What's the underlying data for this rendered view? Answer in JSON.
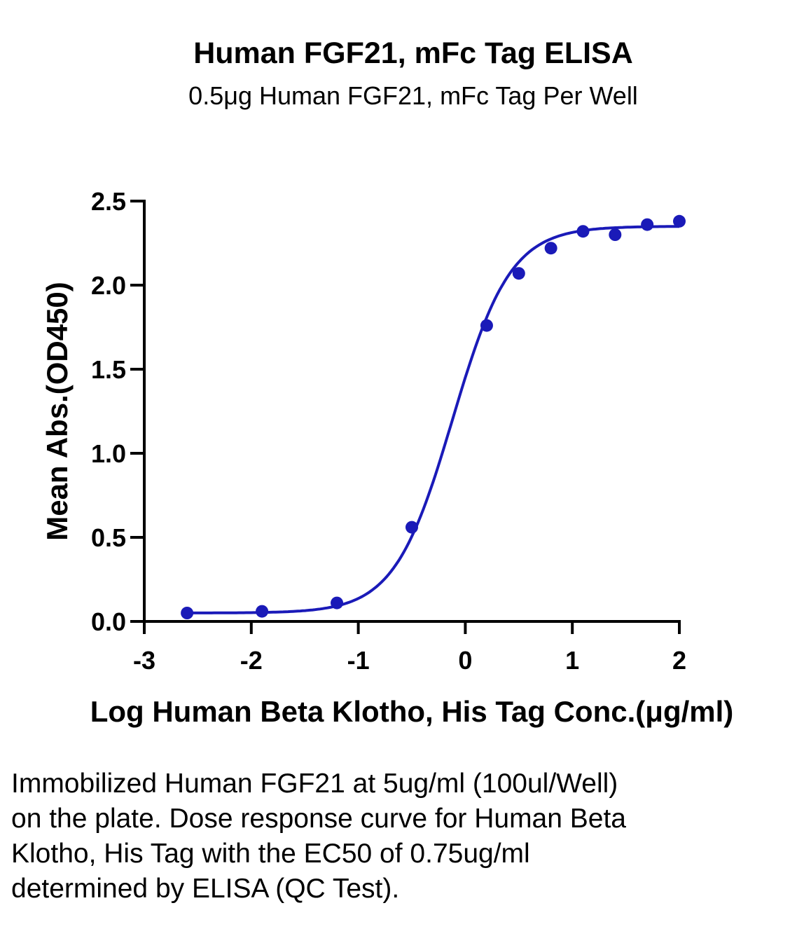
{
  "chart_data": {
    "type": "scatter",
    "title": "Human FGF21, mFc Tag ELISA",
    "subtitle": "0.5μg Human FGF21, mFc Tag Per Well",
    "xlabel": "Log Human Beta Klotho, His Tag Conc.(μg/ml)",
    "ylabel": "Mean Abs.(OD450)",
    "xlim": [
      -3,
      2
    ],
    "ylim": [
      0,
      2.5
    ],
    "x_ticks": [
      "-3",
      "-2",
      "-1",
      "0",
      "1",
      "2"
    ],
    "y_ticks": [
      "0.0",
      "0.5",
      "1.0",
      "1.5",
      "2.0",
      "2.5"
    ],
    "grid": false,
    "color": "#1a1ab8",
    "series": [
      {
        "x": [
          -2.6,
          -1.9,
          -1.2,
          -0.5,
          0.2,
          0.5,
          0.8,
          1.1,
          1.4,
          1.7,
          2.0
        ],
        "y": [
          0.05,
          0.06,
          0.11,
          0.56,
          1.76,
          2.07,
          2.22,
          2.32,
          2.3,
          2.36,
          2.38
        ]
      }
    ],
    "fit": {
      "model": "4PL",
      "bottom": 0.05,
      "top": 2.35,
      "log_ec50": -0.12,
      "hill": 1.6
    }
  },
  "caption": "Immobilized Human FGF21 at 5ug/ml (100ul/Well) on the plate. Dose response curve for Human Beta Klotho, His Tag with the EC50 of 0.75ug/ml determined by ELISA (QC Test)."
}
